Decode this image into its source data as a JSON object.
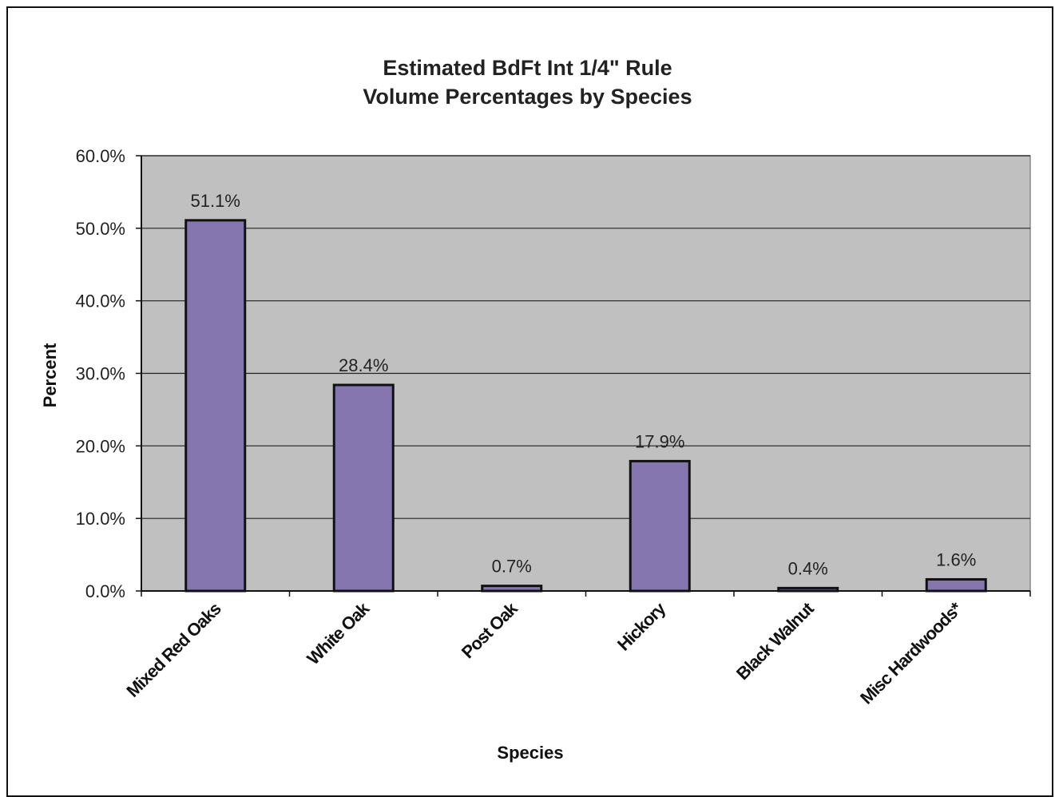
{
  "chart_data": {
    "type": "bar",
    "title_lines": [
      "Estimated BdFt Int 1/4\" Rule",
      "Volume Percentages by Species"
    ],
    "xlabel": "Species",
    "ylabel": "Percent",
    "categories": [
      "Mixed Red Oaks",
      "White Oak",
      "Post Oak",
      "Hickory",
      "Black Walnut",
      "Misc Hardwoods*"
    ],
    "values": [
      51.1,
      28.4,
      0.7,
      17.9,
      0.4,
      1.6
    ],
    "data_labels": [
      "51.1%",
      "28.4%",
      "0.7%",
      "17.9%",
      "0.4%",
      "1.6%"
    ],
    "ylim": [
      0,
      60
    ],
    "yticks": [
      0,
      10,
      20,
      30,
      40,
      50,
      60
    ],
    "ytick_labels": [
      "0.0%",
      "10.0%",
      "20.0%",
      "30.0%",
      "40.0%",
      "50.0%",
      "60.0%"
    ],
    "grid": true,
    "colors": {
      "bar": "#8676b0",
      "plot_bg": "#c0c0c0",
      "grid": "#222222"
    }
  }
}
